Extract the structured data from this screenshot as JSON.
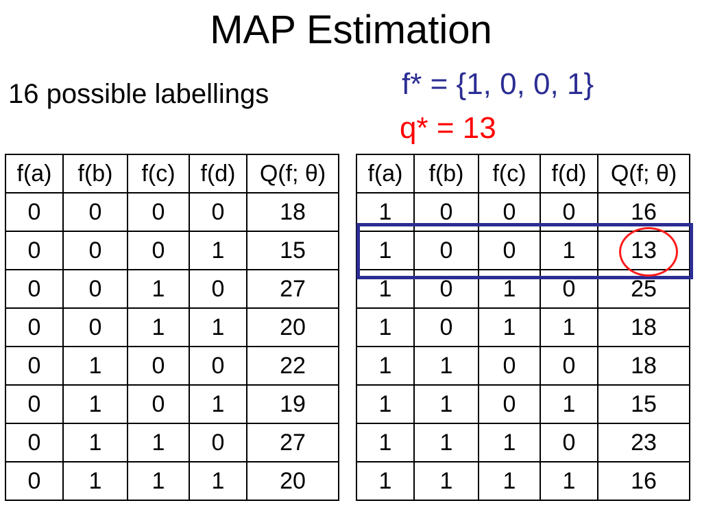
{
  "title": "MAP Estimation",
  "subtitle": "16 possible labellings",
  "f_star": "f* = {1, 0, 0, 1}",
  "q_star": "q* = 13",
  "colors": {
    "f_star": "#2b2d93",
    "q_star": "#ff0000",
    "highlight_box": "#2b2d93",
    "highlight_circle": "#ff1a1a"
  },
  "headers": [
    "f(a)",
    "f(b)",
    "f(c)",
    "f(d)",
    "Q(f; θ)"
  ],
  "table_left": {
    "rows": [
      [
        "0",
        "0",
        "0",
        "0",
        "18"
      ],
      [
        "0",
        "0",
        "0",
        "1",
        "15"
      ],
      [
        "0",
        "0",
        "1",
        "0",
        "27"
      ],
      [
        "0",
        "0",
        "1",
        "1",
        "20"
      ],
      [
        "0",
        "1",
        "0",
        "0",
        "22"
      ],
      [
        "0",
        "1",
        "0",
        "1",
        "19"
      ],
      [
        "0",
        "1",
        "1",
        "0",
        "27"
      ],
      [
        "0",
        "1",
        "1",
        "1",
        "20"
      ]
    ]
  },
  "table_right": {
    "rows": [
      [
        "1",
        "0",
        "0",
        "0",
        "16"
      ],
      [
        "1",
        "0",
        "0",
        "1",
        "13"
      ],
      [
        "1",
        "0",
        "1",
        "0",
        "25"
      ],
      [
        "1",
        "0",
        "1",
        "1",
        "18"
      ],
      [
        "1",
        "1",
        "0",
        "0",
        "18"
      ],
      [
        "1",
        "1",
        "0",
        "1",
        "15"
      ],
      [
        "1",
        "1",
        "1",
        "0",
        "23"
      ],
      [
        "1",
        "1",
        "1",
        "1",
        "16"
      ]
    ],
    "highlighted_row": 1
  }
}
